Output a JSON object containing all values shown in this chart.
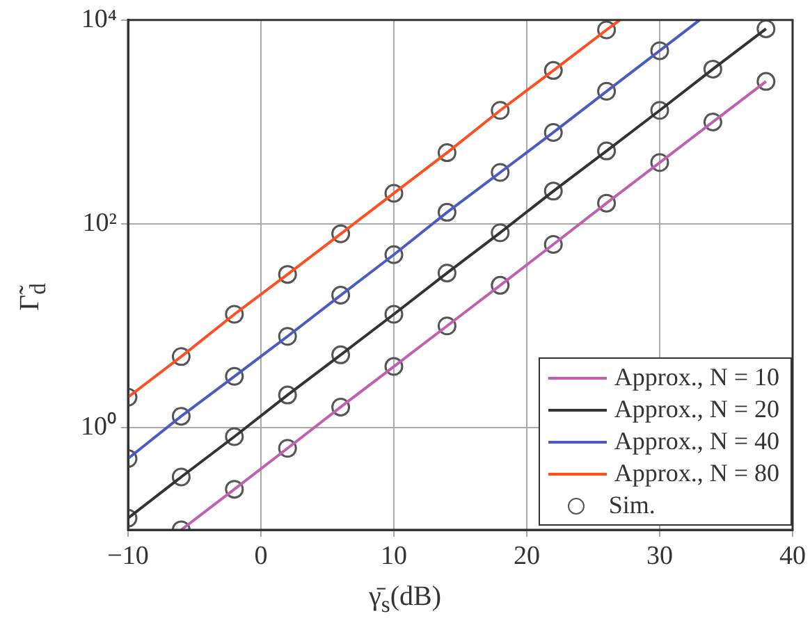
{
  "chart_data": {
    "type": "line",
    "xlabel": "γ̄$_{s}$(dB)",
    "ylabel": "Γ̃$_{d}$",
    "xlim": [
      -10,
      40
    ],
    "xticks": [
      -10,
      0,
      10,
      20,
      30,
      40
    ],
    "ylim": [
      0.1,
      10000
    ],
    "yticks": [
      {
        "value": 1,
        "label": "10⁰"
      },
      {
        "value": 100,
        "label": "10²"
      },
      {
        "value": 10000,
        "label": "10⁴"
      }
    ],
    "log": "y",
    "grid": true,
    "legend": "bottom right",
    "line_style": "solid",
    "marker": "none",
    "series": [
      {
        "name": "Approx., N = 10",
        "color": "#c060b0",
        "x": [
          -6,
          -2,
          2,
          6,
          10,
          14,
          18,
          22,
          26,
          30,
          34,
          38
        ],
        "values": [
          0.1,
          0.25,
          0.63,
          1.6,
          4.0,
          10,
          25,
          63,
          160,
          400,
          1000,
          2500
        ]
      },
      {
        "name": "Approx., N = 20",
        "color": "#333333",
        "x": [
          -10,
          -6,
          -2,
          2,
          6,
          10,
          14,
          18,
          22,
          26,
          30,
          34,
          38
        ],
        "values": [
          0.13,
          0.33,
          0.82,
          2.1,
          5.2,
          13,
          33,
          82,
          210,
          520,
          1300,
          3300,
          8200
        ]
      },
      {
        "name": "Approx., N = 40",
        "color": "#4a5cc0",
        "x": [
          -10,
          -6,
          -2,
          2,
          6,
          10,
          14,
          18,
          22,
          26,
          30,
          33
        ],
        "values": [
          0.5,
          1.3,
          3.2,
          7.9,
          20,
          50,
          130,
          320,
          790,
          2000,
          5000,
          10000
        ]
      },
      {
        "name": "Approx., N = 80",
        "color": "#ff4e20",
        "x": [
          -10,
          -6,
          -2,
          2,
          6,
          10,
          14,
          18,
          22,
          26,
          27
        ],
        "values": [
          2,
          5,
          13,
          32,
          80,
          200,
          500,
          1300,
          3200,
          8000,
          10000
        ]
      },
      {
        "name": "Sim.",
        "type": "scatter",
        "marker": "circle",
        "color": "#555555",
        "x": [
          -6,
          -2,
          2,
          6,
          10,
          14,
          18,
          22,
          26,
          30,
          34,
          38,
          -10,
          -6,
          -2,
          2,
          6,
          10,
          14,
          18,
          22,
          26,
          30,
          34,
          38,
          -10,
          -6,
          -2,
          2,
          6,
          10,
          14,
          18,
          22,
          26,
          30,
          -10,
          -6,
          -2,
          2,
          6,
          10,
          14,
          18,
          22,
          26
        ],
        "values": [
          0.1,
          0.25,
          0.63,
          1.6,
          4.0,
          10,
          25,
          63,
          160,
          400,
          1000,
          2500,
          0.13,
          0.33,
          0.82,
          2.1,
          5.2,
          13,
          33,
          82,
          210,
          520,
          1300,
          3300,
          8200,
          0.5,
          1.3,
          3.2,
          7.9,
          20,
          50,
          130,
          320,
          790,
          2000,
          5000,
          2,
          5,
          13,
          32,
          80,
          200,
          500,
          1300,
          3200,
          8000
        ]
      }
    ]
  }
}
